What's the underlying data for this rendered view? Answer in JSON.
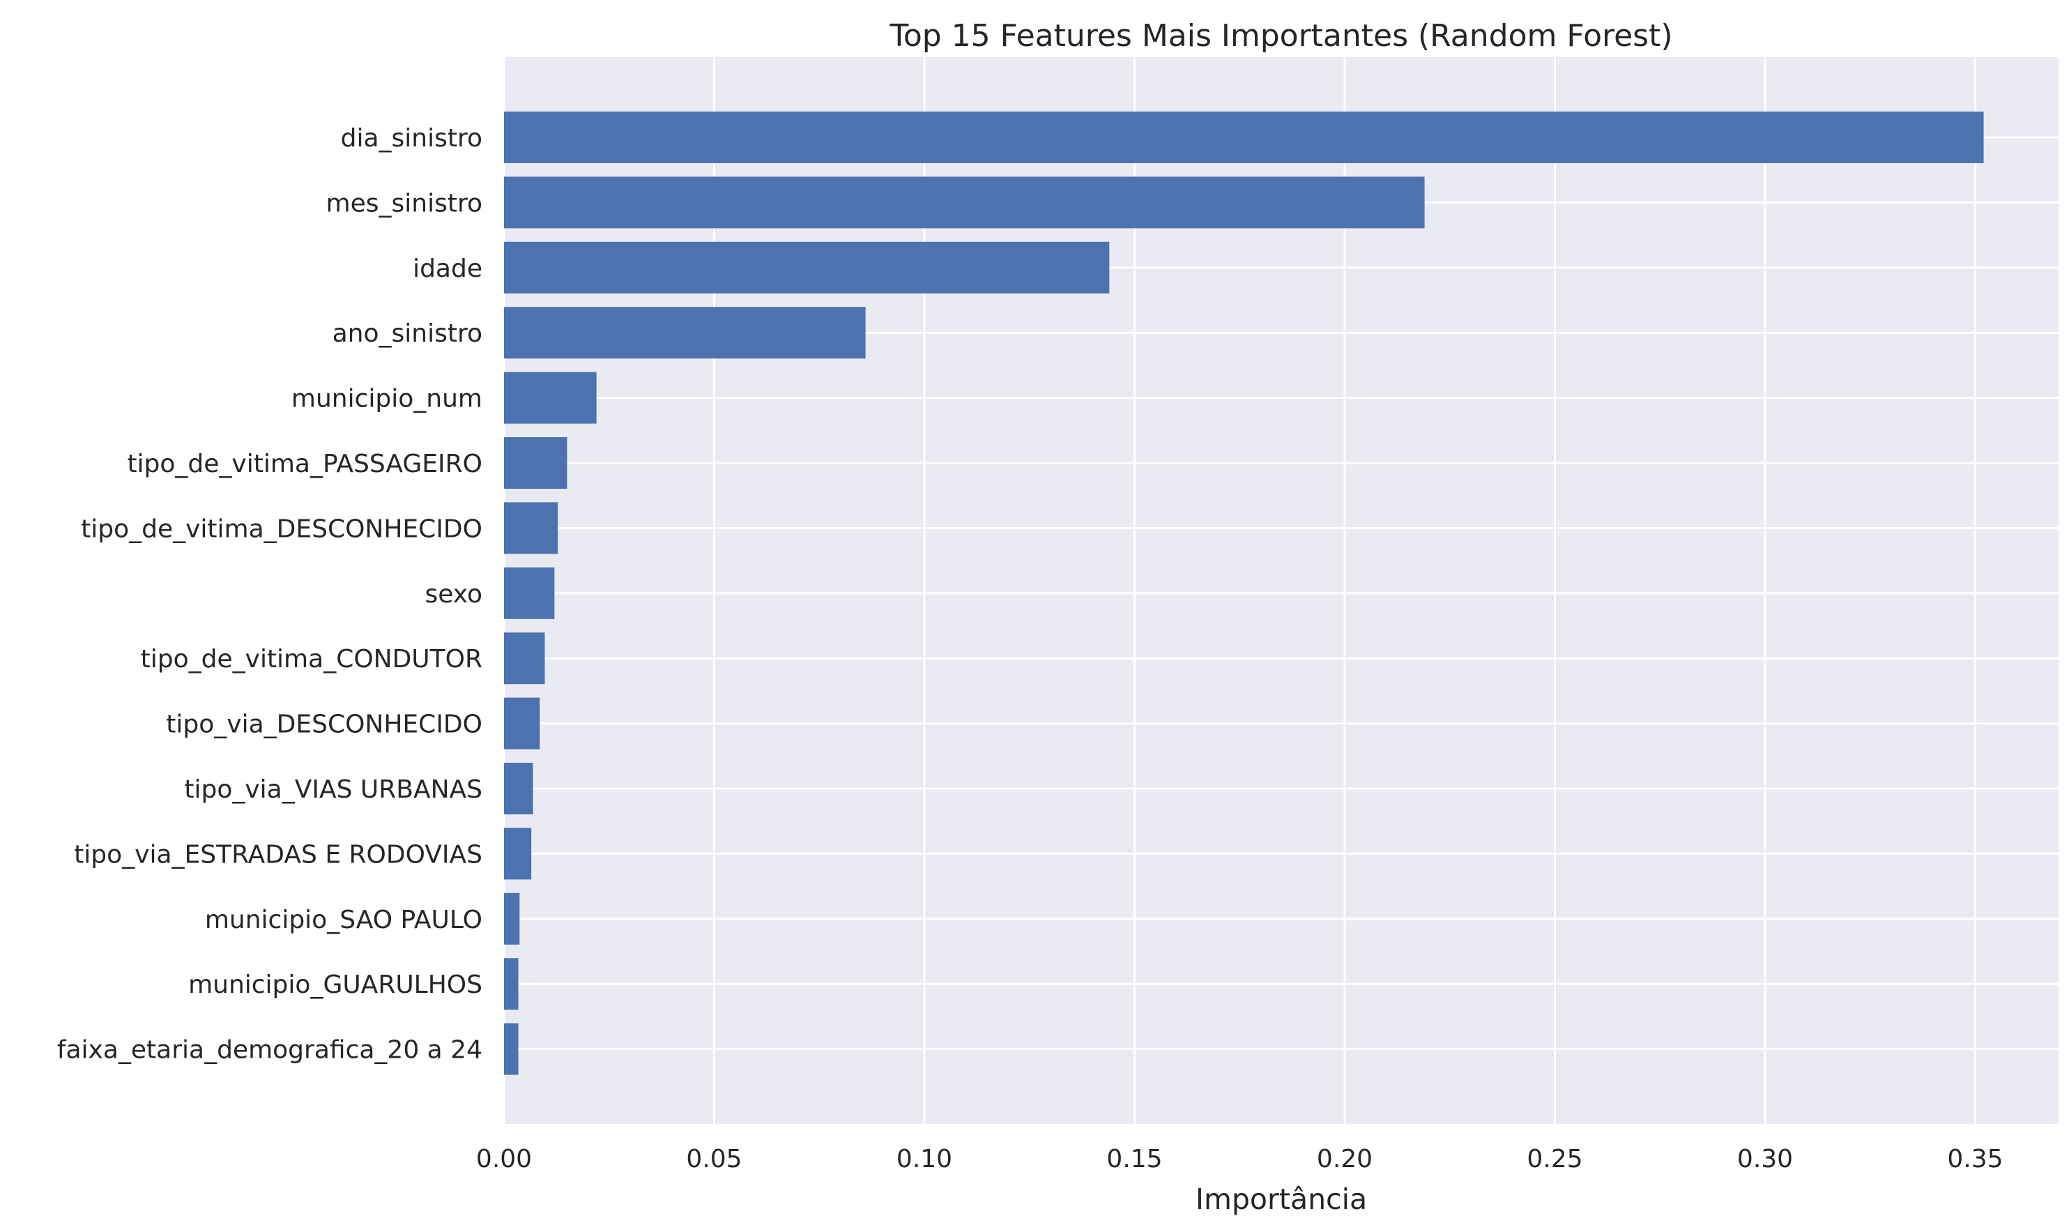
{
  "chart_data": {
    "type": "bar",
    "orientation": "horizontal",
    "title": "Top 15 Features Mais Importantes (Random Forest)",
    "xlabel": "Importância",
    "ylabel": "",
    "xlim": [
      0.0,
      0.37
    ],
    "xticks": [
      "0.00",
      "0.05",
      "0.10",
      "0.15",
      "0.20",
      "0.25",
      "0.30",
      "0.35"
    ],
    "xtick_values": [
      0.0,
      0.05,
      0.1,
      0.15,
      0.2,
      0.25,
      0.3,
      0.35
    ],
    "grid": true,
    "legend": "none",
    "bar_color": "#4c72b0",
    "background_color": "#eaeaf2",
    "categories": [
      "dia_sinistro",
      "mes_sinistro",
      "idade",
      "ano_sinistro",
      "municipio_num",
      "tipo_de_vitima_PASSAGEIRO",
      "tipo_de_vitima_DESCONHECIDO",
      "sexo",
      "tipo_de_vitima_CONDUTOR",
      "tipo_via_DESCONHECIDO",
      "tipo_via_VIAS URBANAS",
      "tipo_via_ESTRADAS E RODOVIAS",
      "municipio_SAO PAULO",
      "municipio_GUARULHOS",
      "faixa_etaria_demografica_20 a 24"
    ],
    "values": [
      0.352,
      0.219,
      0.144,
      0.086,
      0.022,
      0.015,
      0.0128,
      0.012,
      0.0097,
      0.0085,
      0.0069,
      0.0065,
      0.0037,
      0.0034,
      0.0034
    ]
  }
}
